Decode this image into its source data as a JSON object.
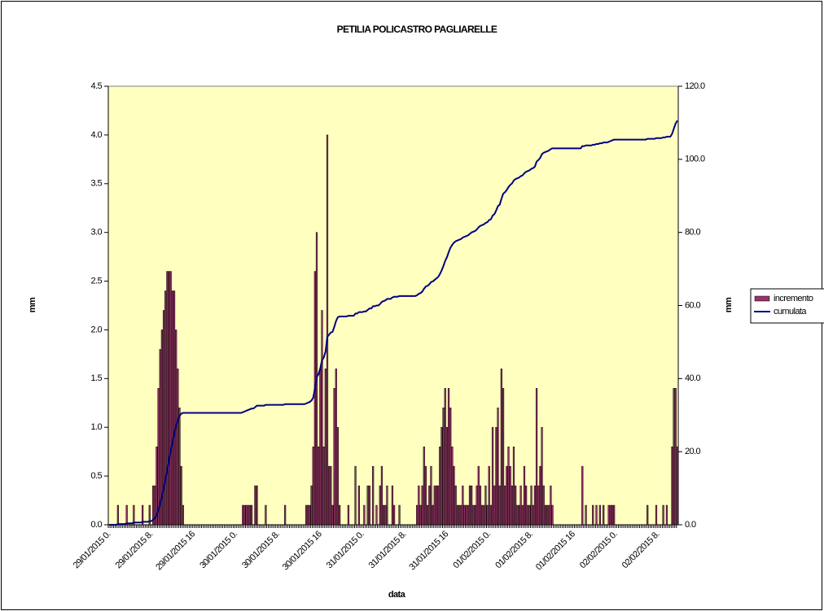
{
  "chart_data": {
    "type": "bar-line",
    "title": "PETILIA POLICASTRO PAGLIARELLE",
    "x_label": "data",
    "y_label": "mm",
    "y2_label": "mm",
    "ylim": [
      0,
      4.5
    ],
    "yticks": [
      {
        "value": 0,
        "label": "0.0"
      },
      {
        "value": 0.5,
        "label": "0.5"
      },
      {
        "value": 1,
        "label": "1.0"
      },
      {
        "value": 1.5,
        "label": "1.5"
      },
      {
        "value": 2,
        "label": "2.0"
      },
      {
        "value": 2.5,
        "label": "2.5"
      },
      {
        "value": 3,
        "label": "3.0"
      },
      {
        "value": 3.5,
        "label": "3.5"
      },
      {
        "value": 4,
        "label": "4.0"
      },
      {
        "value": 4.5,
        "label": "4.5"
      }
    ],
    "y2lim": [
      0,
      120
    ],
    "y2ticks": [
      {
        "value": 0,
        "label": "0.0"
      },
      {
        "value": 20,
        "label": "20.0"
      },
      {
        "value": 40,
        "label": "40.0"
      },
      {
        "value": 60,
        "label": "60.0"
      },
      {
        "value": 80,
        "label": "80.0"
      },
      {
        "value": 100,
        "label": "100.0"
      },
      {
        "value": 120,
        "label": "120.0"
      }
    ],
    "legend": "right",
    "categories": [
      "29/01/2015 0.",
      null,
      null,
      null,
      null,
      null,
      null,
      null,
      null,
      null,
      null,
      null,
      null,
      null,
      null,
      null,
      null,
      null,
      null,
      null,
      null,
      null,
      null,
      null,
      "29/01/2015 8.",
      null,
      null,
      null,
      null,
      null,
      null,
      null,
      null,
      null,
      null,
      null,
      null,
      null,
      null,
      null,
      null,
      null,
      null,
      null,
      null,
      null,
      null,
      null,
      "29/01/2015 16",
      null,
      null,
      null,
      null,
      null,
      null,
      null,
      null,
      null,
      null,
      null,
      null,
      null,
      null,
      null,
      null,
      null,
      null,
      null,
      null,
      null,
      null,
      null,
      "30/01/2015 0.",
      null,
      null,
      null,
      null,
      null,
      null,
      null,
      null,
      null,
      null,
      null,
      null,
      null,
      null,
      null,
      null,
      null,
      null,
      null,
      null,
      null,
      null,
      null,
      "30/01/2015 8.",
      null,
      null,
      null,
      null,
      null,
      null,
      null,
      null,
      null,
      null,
      null,
      null,
      null,
      null,
      null,
      null,
      null,
      null,
      null,
      null,
      null,
      null,
      null,
      "30/01/2015 16",
      null,
      null,
      null,
      null,
      null,
      null,
      null,
      null,
      null,
      null,
      null,
      null,
      null,
      null,
      null,
      null,
      null,
      null,
      null,
      null,
      null,
      null,
      null,
      "31/01/2015 0.",
      null,
      null,
      null,
      null,
      null,
      null,
      null,
      null,
      null,
      null,
      null,
      null,
      null,
      null,
      null,
      null,
      null,
      null,
      null,
      null,
      null,
      null,
      null,
      "31/01/2015 8.",
      null,
      null,
      null,
      null,
      null,
      null,
      null,
      null,
      null,
      null,
      null,
      null,
      null,
      null,
      null,
      null,
      null,
      null,
      null,
      null,
      null,
      null,
      null,
      "31/01/2015 16",
      null,
      null,
      null,
      null,
      null,
      null,
      null,
      null,
      null,
      null,
      null,
      null,
      null,
      null,
      null,
      null,
      null,
      null,
      null,
      null,
      null,
      null,
      null,
      "01/02/2015 0.",
      null,
      null,
      null,
      null,
      null,
      null,
      null,
      null,
      null,
      null,
      null,
      null,
      null,
      null,
      null,
      null,
      null,
      null,
      null,
      null,
      null,
      null,
      null,
      "01/02/2015 8.",
      null,
      null,
      null,
      null,
      null,
      null,
      null,
      null,
      null,
      null,
      null,
      null,
      null,
      null,
      null,
      null,
      null,
      null,
      null,
      null,
      null,
      null,
      null,
      "01/02/2015 16",
      null,
      null,
      null,
      null,
      null,
      null,
      null,
      null,
      null,
      null,
      null,
      null,
      null,
      null,
      null,
      null,
      null,
      null,
      null,
      null,
      null,
      null,
      null,
      "02/02/2015 0.",
      null,
      null,
      null,
      null,
      null,
      null,
      null,
      null,
      null,
      null,
      null,
      null,
      null,
      null,
      null,
      null,
      null,
      null,
      null,
      null,
      null,
      null,
      null,
      "02/02/2015 8.",
      null,
      null,
      null,
      null,
      null,
      null,
      null,
      null,
      null,
      null,
      null
    ],
    "series": [
      {
        "name": "incremento",
        "color": "#993366",
        "values": [
          0,
          0,
          0,
          0,
          0,
          0.2,
          0,
          0,
          0,
          0,
          0.2,
          0,
          0,
          0,
          0.2,
          0,
          0,
          0,
          0,
          0.2,
          0,
          0,
          0,
          0.2,
          0,
          0.4,
          0.4,
          0.8,
          1.4,
          1.8,
          2.0,
          2.2,
          2.4,
          2.6,
          2.6,
          2.6,
          2.4,
          2.4,
          2.0,
          1.6,
          1.2,
          0.6,
          0.2,
          0,
          0,
          0,
          0,
          0,
          0,
          0,
          0,
          0,
          0,
          0,
          0,
          0,
          0,
          0,
          0,
          0,
          0,
          0,
          0,
          0,
          0,
          0,
          0,
          0,
          0,
          0,
          0,
          0,
          0,
          0,
          0,
          0,
          0.2,
          0.2,
          0.2,
          0.2,
          0.2,
          0.2,
          0,
          0.4,
          0.4,
          0,
          0,
          0,
          0,
          0.2,
          0,
          0,
          0,
          0,
          0,
          0,
          0,
          0,
          0,
          0,
          0.2,
          0,
          0,
          0,
          0,
          0,
          0,
          0,
          0,
          0,
          0,
          0,
          0.2,
          0.2,
          0.2,
          0.4,
          0.8,
          2.6,
          3.0,
          0.8,
          1.6,
          2.2,
          0.8,
          1.6,
          4.0,
          0.6,
          0.6,
          0.2,
          1.4,
          1.6,
          1.0,
          0.2,
          0,
          0,
          0,
          0,
          0.2,
          0,
          0,
          0,
          0.6,
          0,
          0.4,
          0,
          0,
          0.2,
          0,
          0.4,
          0.4,
          0,
          0.6,
          0,
          0.2,
          0,
          0.4,
          0.6,
          0.2,
          0.2,
          0.4,
          0,
          0,
          0.4,
          0.2,
          0,
          0,
          0.2,
          0,
          0,
          0,
          0,
          0,
          0,
          0,
          0,
          0,
          0.2,
          0.4,
          0.2,
          0.4,
          0.8,
          0.6,
          0.2,
          0.4,
          0.6,
          0.2,
          0.4,
          0.4,
          0.4,
          0.8,
          1.0,
          1.2,
          1.4,
          1.0,
          1.4,
          1.2,
          0.8,
          0.6,
          0.4,
          0.2,
          0.2,
          0.2,
          0.4,
          0.2,
          0.2,
          0.2,
          0.4,
          0.4,
          0.2,
          0.2,
          0.4,
          0.6,
          0.4,
          0.2,
          0.2,
          0.4,
          0.2,
          0.6,
          0.2,
          1.0,
          0.4,
          1.0,
          1.2,
          0.4,
          1.6,
          1.4,
          0.4,
          0.6,
          0.8,
          0.6,
          0.4,
          0.8,
          0.4,
          0.2,
          0.2,
          0.4,
          0.2,
          0.6,
          0.4,
          0.2,
          0.2,
          0.4,
          0.2,
          0.4,
          1.4,
          0.4,
          0.6,
          1.0,
          0.4,
          0.2,
          0.2,
          0.2,
          0.4,
          0.2,
          0,
          0,
          0,
          0,
          0,
          0,
          0,
          0,
          0,
          0,
          0,
          0,
          0,
          0,
          0,
          0,
          0.6,
          0,
          0.2,
          0,
          0,
          0,
          0.2,
          0,
          0.2,
          0,
          0.2,
          0,
          0.2,
          0,
          0,
          0.2,
          0.2,
          0.2,
          0.2,
          0,
          0,
          0,
          0,
          0,
          0,
          0,
          0,
          0,
          0,
          0,
          0,
          0,
          0,
          0,
          0,
          0,
          0,
          0.2,
          0,
          0,
          0,
          0,
          0.2,
          0,
          0,
          0,
          0.2,
          0,
          0.2,
          0,
          0,
          0.8,
          1.4,
          1.4,
          0.8
        ]
      },
      {
        "name": "cumulata",
        "color": "#000080",
        "axis": "y2",
        "values": [
          0,
          0,
          0,
          0,
          0,
          0.2,
          0.2,
          0.2,
          0.2,
          0.2,
          0.4,
          0.4,
          0.4,
          0.4,
          0.6,
          0.6,
          0.6,
          0.6,
          0.6,
          0.8,
          0.8,
          0.8,
          0.8,
          1.0,
          1.0,
          1.4,
          1.8,
          2.6,
          4.0,
          5.8,
          7.8,
          10.0,
          12.4,
          15.0,
          17.6,
          20.2,
          22.6,
          25.0,
          27.0,
          28.6,
          29.8,
          30.4,
          30.6,
          30.6,
          30.6,
          30.6,
          30.6,
          30.6,
          30.6,
          30.6,
          30.6,
          30.6,
          30.6,
          30.6,
          30.6,
          30.6,
          30.6,
          30.6,
          30.6,
          30.6,
          30.6,
          30.6,
          30.6,
          30.6,
          30.6,
          30.6,
          30.6,
          30.6,
          30.6,
          30.6,
          30.6,
          30.6,
          30.6,
          30.6,
          30.6,
          30.6,
          30.8,
          31.0,
          31.2,
          31.4,
          31.6,
          31.8,
          31.8,
          32.2,
          32.6,
          32.6,
          32.6,
          32.6,
          32.6,
          32.8,
          32.8,
          32.8,
          32.8,
          32.8,
          32.8,
          32.8,
          32.8,
          32.8,
          32.8,
          32.8,
          33.0,
          33.0,
          33.0,
          33.0,
          33.0,
          33.0,
          33.0,
          33.0,
          33.0,
          33.0,
          33.0,
          33.0,
          33.2,
          33.4,
          33.6,
          34.0,
          34.8,
          37.4,
          40.4,
          41.2,
          42.8,
          45.0,
          45.8,
          47.4,
          51.4,
          52.0,
          52.6,
          52.8,
          54.2,
          55.8,
          56.8,
          57.0,
          57.0,
          57.0,
          57.0,
          57.0,
          57.2,
          57.2,
          57.2,
          57.2,
          57.8,
          57.8,
          58.2,
          58.2,
          58.2,
          58.4,
          58.4,
          58.8,
          59.2,
          59.2,
          59.8,
          59.8,
          60.0,
          60.0,
          60.4,
          61.0,
          61.2,
          61.4,
          61.8,
          61.8,
          61.8,
          62.2,
          62.4,
          62.4,
          62.4,
          62.6,
          62.6,
          62.6,
          62.6,
          62.6,
          62.6,
          62.6,
          62.6,
          62.6,
          62.6,
          62.8,
          63.2,
          63.4,
          63.8,
          64.6,
          65.2,
          65.4,
          65.8,
          66.4,
          66.6,
          67.0,
          67.4,
          67.8,
          68.6,
          69.6,
          70.8,
          72.2,
          73.2,
          74.6,
          75.8,
          76.6,
          77.2,
          77.6,
          77.8,
          78.0,
          78.2,
          78.6,
          78.8,
          79.0,
          79.2,
          79.6,
          80.0,
          80.2,
          80.4,
          80.8,
          81.4,
          81.8,
          82.0,
          82.2,
          82.6,
          82.8,
          83.4,
          83.6,
          84.6,
          85.0,
          86.0,
          87.2,
          87.6,
          89.2,
          90.6,
          91.0,
          91.6,
          92.4,
          93.0,
          93.4,
          94.2,
          94.6,
          94.8,
          95.0,
          95.4,
          95.6,
          96.2,
          96.6,
          96.8,
          97.0,
          97.4,
          97.6,
          98.0,
          99.4,
          99.8,
          100.4,
          101.4,
          101.8,
          102.0,
          102.2,
          102.4,
          102.8,
          103.0,
          103.0,
          103.0,
          103.0,
          103.0,
          103.0,
          103.0,
          103.0,
          103.0,
          103.0,
          103.0,
          103.0,
          103.0,
          103.0,
          103.0,
          103.0,
          103.0,
          103.6,
          103.6,
          103.8,
          103.8,
          103.8,
          103.8,
          104.0,
          104.0,
          104.2,
          104.2,
          104.4,
          104.4,
          104.6,
          104.6,
          104.6,
          104.8,
          105.0,
          105.2,
          105.4,
          105.4,
          105.4,
          105.4,
          105.4,
          105.4,
          105.4,
          105.4,
          105.4,
          105.4,
          105.4,
          105.4,
          105.4,
          105.4,
          105.4,
          105.4,
          105.4,
          105.4,
          105.4,
          105.6,
          105.6,
          105.6,
          105.6,
          105.6,
          105.8,
          105.8,
          105.8,
          105.8,
          106.0,
          106.0,
          106.2,
          106.2,
          106.2,
          107.0,
          108.4,
          109.8,
          110.6
        ]
      }
    ]
  }
}
